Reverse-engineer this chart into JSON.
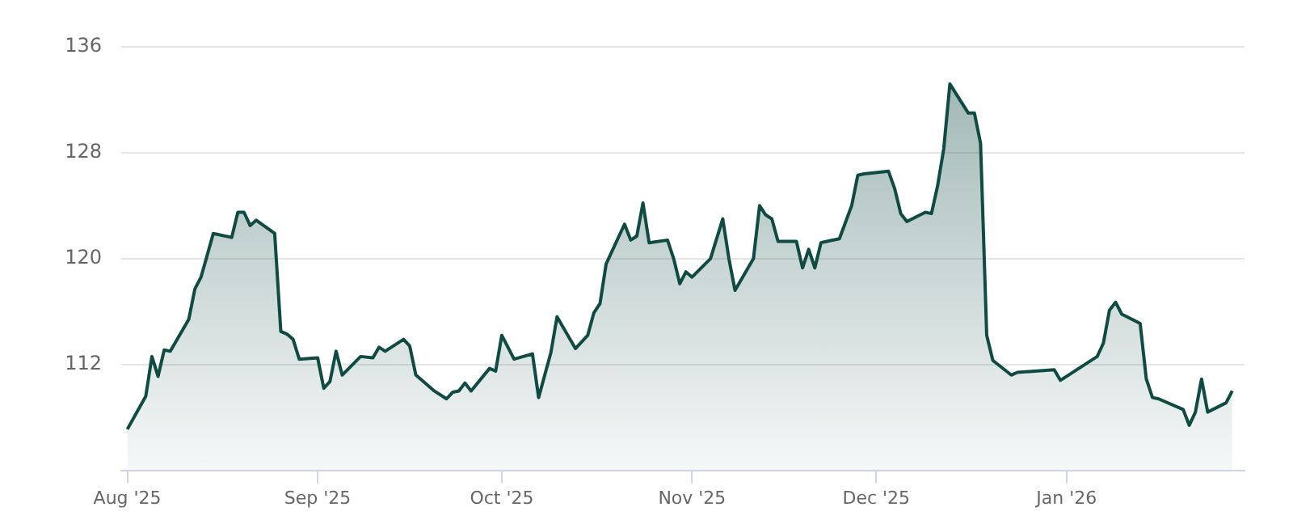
{
  "chart_data": {
    "type": "area",
    "x": [
      "2025-08-01",
      "2025-08-04",
      "2025-08-05",
      "2025-08-06",
      "2025-08-07",
      "2025-08-08",
      "2025-08-11",
      "2025-08-12",
      "2025-08-13",
      "2025-08-15",
      "2025-08-18",
      "2025-08-19",
      "2025-08-20",
      "2025-08-21",
      "2025-08-22",
      "2025-08-25",
      "2025-08-26",
      "2025-08-27",
      "2025-08-28",
      "2025-08-29",
      "2025-09-01",
      "2025-09-02",
      "2025-09-03",
      "2025-09-04",
      "2025-09-05",
      "2025-09-08",
      "2025-09-10",
      "2025-09-11",
      "2025-09-12",
      "2025-09-15",
      "2025-09-16",
      "2025-09-17",
      "2025-09-18",
      "2025-09-20",
      "2025-09-22",
      "2025-09-23",
      "2025-09-24",
      "2025-09-25",
      "2025-09-26",
      "2025-09-29",
      "2025-09-30",
      "2025-10-01",
      "2025-10-03",
      "2025-10-06",
      "2025-10-07",
      "2025-10-09",
      "2025-10-10",
      "2025-10-13",
      "2025-10-15",
      "2025-10-16",
      "2025-10-17",
      "2025-10-18",
      "2025-10-21",
      "2025-10-22",
      "2025-10-23",
      "2025-10-24",
      "2025-10-25",
      "2025-10-28",
      "2025-10-29",
      "2025-10-30",
      "2025-10-31",
      "2025-11-01",
      "2025-11-04",
      "2025-11-06",
      "2025-11-07",
      "2025-11-08",
      "2025-11-11",
      "2025-11-12",
      "2025-11-13",
      "2025-11-14",
      "2025-11-15",
      "2025-11-18",
      "2025-11-19",
      "2025-11-20",
      "2025-11-21",
      "2025-11-22",
      "2025-11-25",
      "2025-11-27",
      "2025-11-28",
      "2025-11-29",
      "2025-12-03",
      "2025-12-04",
      "2025-12-05",
      "2025-12-06",
      "2025-12-09",
      "2025-12-10",
      "2025-12-11",
      "2025-12-12",
      "2025-12-13",
      "2025-12-16",
      "2025-12-17",
      "2025-12-18",
      "2025-12-19",
      "2025-12-20",
      "2025-12-23",
      "2025-12-24",
      "2025-12-30",
      "2025-12-31",
      "2026-01-06",
      "2026-01-07",
      "2026-01-08",
      "2026-01-09",
      "2026-01-10",
      "2026-01-13",
      "2026-01-14",
      "2026-01-15",
      "2026-01-16",
      "2026-01-20",
      "2026-01-21",
      "2026-01-22",
      "2026-01-23",
      "2026-01-24",
      "2026-01-27",
      "2026-01-28"
    ],
    "series": [
      {
        "color": "#0f4a43",
        "values": [
          107.1,
          109.6,
          112.6,
          111.1,
          113.1,
          113.0,
          115.4,
          117.7,
          118.6,
          121.9,
          121.6,
          123.5,
          123.5,
          122.5,
          122.9,
          121.9,
          114.5,
          114.3,
          113.9,
          112.4,
          112.5,
          110.2,
          110.7,
          113.0,
          111.2,
          112.6,
          112.5,
          113.3,
          113.0,
          113.9,
          113.4,
          111.2,
          110.8,
          110.0,
          109.4,
          109.9,
          110.0,
          110.6,
          110.0,
          111.7,
          111.5,
          114.2,
          112.4,
          112.8,
          109.5,
          112.9,
          115.6,
          113.2,
          114.2,
          115.9,
          116.6,
          119.6,
          122.6,
          121.4,
          121.7,
          124.2,
          121.2,
          121.4,
          120.0,
          118.1,
          119.0,
          118.6,
          120.0,
          123.0,
          120.0,
          117.6,
          120.0,
          124.0,
          123.3,
          123.0,
          121.3,
          121.3,
          119.3,
          120.7,
          119.3,
          121.2,
          121.5,
          124.0,
          126.3,
          126.4,
          126.6,
          125.3,
          123.4,
          122.8,
          123.5,
          123.4,
          125.5,
          128.3,
          133.2,
          131.0,
          131.0,
          128.7,
          114.2,
          112.3,
          111.2,
          111.4,
          111.6,
          110.8,
          112.6,
          113.6,
          116.1,
          116.7,
          115.8,
          115.1,
          110.9,
          109.5,
          109.4,
          108.6,
          107.4,
          108.4,
          110.9,
          108.4,
          109.1,
          110.0
        ]
      }
    ],
    "xlim": [
      "2025-07-31",
      "2026-01-30"
    ],
    "xticks": [
      {
        "value": "2025-08-01",
        "label": "Aug '25"
      },
      {
        "value": "2025-09-01",
        "label": "Sep '25"
      },
      {
        "value": "2025-10-01",
        "label": "Oct '25"
      },
      {
        "value": "2025-11-01",
        "label": "Nov '25"
      },
      {
        "value": "2025-12-01",
        "label": "Dec '25"
      },
      {
        "value": "2026-01-01",
        "label": "Jan '26"
      }
    ],
    "ylim": [
      104,
      136
    ],
    "yticks": [
      112,
      120,
      128,
      136
    ],
    "grid": "y",
    "legend": false,
    "marker": "none",
    "line_style": "solid"
  }
}
